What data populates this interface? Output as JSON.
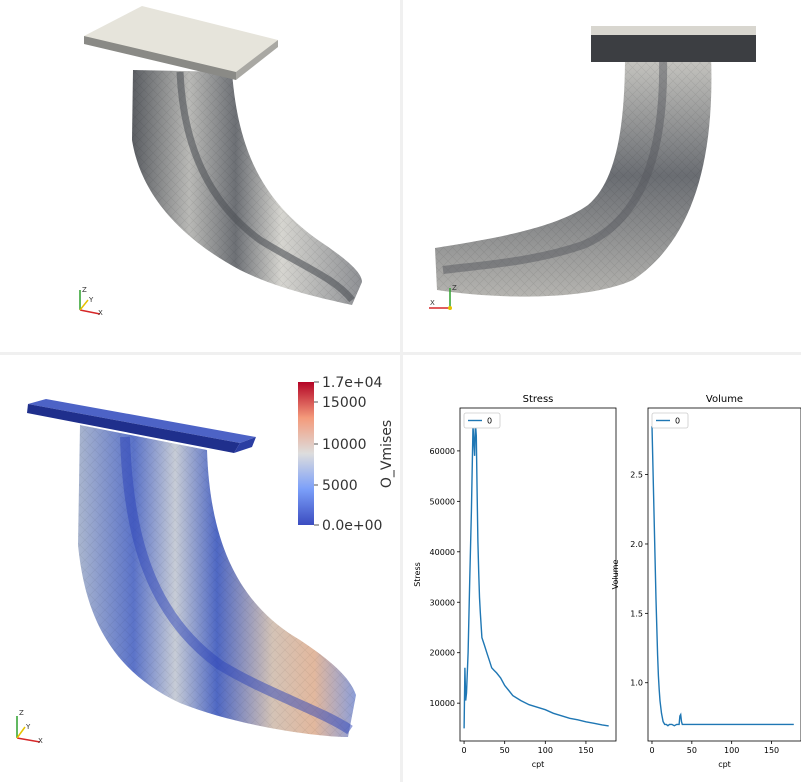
{
  "views": {
    "top_left": {
      "name": "mesh-view-perspective"
    },
    "top_right": {
      "name": "mesh-view-side"
    },
    "bottom_left": {
      "name": "mesh-view-stress"
    }
  },
  "axes_triad": {
    "x": "X",
    "y": "Y",
    "z": "Z"
  },
  "colorbar": {
    "title": "O_Vmises",
    "max_label": "1.7e+04",
    "min_label": "0.0e+00",
    "ticks": [
      "15000",
      "10000",
      "5000"
    ],
    "colors": {
      "high": "#b40426",
      "mid": "#dddddd",
      "low": "#3b4cc0"
    }
  },
  "chart_data": [
    {
      "type": "line",
      "title": "Stress",
      "xlabel": "cpt",
      "ylabel": "Stress",
      "xlim": [
        -5,
        187
      ],
      "ylim": [
        2500,
        68500
      ],
      "xticks": [
        "0",
        "50",
        "100",
        "150"
      ],
      "xtick_values": [
        0,
        50,
        100,
        150
      ],
      "yticks": [
        "10000",
        "20000",
        "30000",
        "40000",
        "50000",
        "60000"
      ],
      "ytick_values": [
        10000,
        20000,
        30000,
        40000,
        50000,
        60000
      ],
      "legend": "upper-left",
      "color": "#1f77b4",
      "series": [
        {
          "name": "0",
          "x": [
            0,
            1,
            2,
            3,
            5,
            7,
            9,
            11,
            13,
            14,
            15,
            16,
            17,
            18,
            19,
            20,
            22,
            25,
            28,
            31,
            34,
            37,
            40,
            45,
            50,
            55,
            60,
            70,
            80,
            90,
            100,
            110,
            120,
            130,
            140,
            150,
            160,
            170,
            178
          ],
          "y": [
            5000,
            17000,
            10500,
            12000,
            20000,
            35000,
            48000,
            65000,
            59000,
            65500,
            63000,
            52000,
            42000,
            36000,
            31000,
            28000,
            23000,
            21500,
            20000,
            18500,
            17000,
            16500,
            16000,
            15000,
            13500,
            12500,
            11500,
            10500,
            9700,
            9200,
            8700,
            8000,
            7500,
            7000,
            6700,
            6300,
            6000,
            5700,
            5500
          ]
        }
      ]
    },
    {
      "type": "line",
      "title": "Volume",
      "xlabel": "cpt",
      "ylabel": "Volume",
      "xlim": [
        -5,
        187
      ],
      "ylim": [
        0.58,
        2.98
      ],
      "xticks": [
        "0",
        "50",
        "100",
        "150"
      ],
      "xtick_values": [
        0,
        50,
        100,
        150
      ],
      "yticks": [
        "1.0",
        "1.5",
        "2.0",
        "2.5"
      ],
      "ytick_values": [
        1.0,
        1.5,
        2.0,
        2.5
      ],
      "legend": "upper-left",
      "color": "#1f77b4",
      "series": [
        {
          "name": "0",
          "x": [
            0,
            1,
            2,
            3,
            4,
            5,
            6,
            7,
            8,
            9,
            10,
            12,
            14,
            16,
            18,
            20,
            22,
            25,
            28,
            31,
            34,
            35,
            36,
            37,
            38,
            40,
            45,
            50,
            60,
            70,
            80,
            90,
            100,
            110,
            120,
            130,
            140,
            150,
            160,
            170,
            178
          ],
          "y": [
            2.85,
            2.6,
            2.35,
            2.1,
            1.85,
            1.6,
            1.4,
            1.2,
            1.05,
            0.95,
            0.87,
            0.78,
            0.72,
            0.7,
            0.7,
            0.69,
            0.7,
            0.7,
            0.69,
            0.7,
            0.7,
            0.76,
            0.77,
            0.72,
            0.7,
            0.7,
            0.7,
            0.7,
            0.7,
            0.7,
            0.7,
            0.7,
            0.7,
            0.7,
            0.7,
            0.7,
            0.7,
            0.7,
            0.7,
            0.7,
            0.7
          ]
        }
      ]
    }
  ]
}
